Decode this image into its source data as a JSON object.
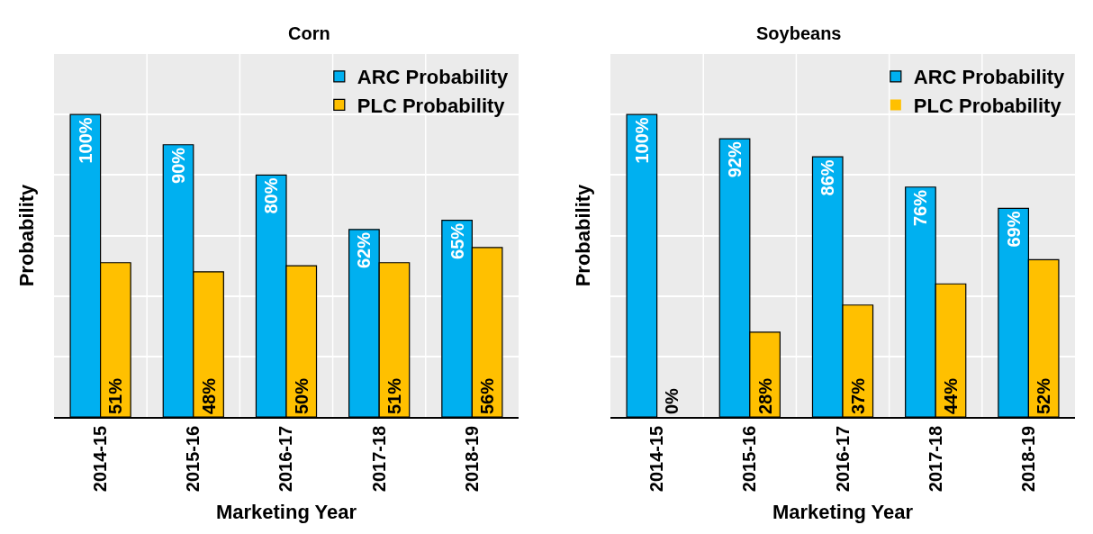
{
  "chart_data": [
    {
      "type": "bar",
      "title": "Corn",
      "xlabel": "Marketing Year",
      "ylabel": "Probability",
      "categories": [
        "2014-15",
        "2015-16",
        "2016-17",
        "2017-18",
        "2018-19"
      ],
      "series": [
        {
          "name": "ARC Probability",
          "color": "#00b0f0",
          "values": [
            100,
            90,
            80,
            62,
            65
          ],
          "value_labels": [
            "100%",
            "90%",
            "80%",
            "62%",
            "65%"
          ]
        },
        {
          "name": "PLC Probability",
          "color": "#ffc000",
          "values": [
            51,
            48,
            50,
            51,
            56
          ],
          "value_labels": [
            "51%",
            "48%",
            "50%",
            "51%",
            "56%"
          ]
        }
      ],
      "ylim": [
        0,
        120
      ],
      "yticks": [
        {
          "value": 0,
          "label": null
        },
        {
          "value": 20,
          "label": null
        },
        {
          "value": 40,
          "label": null
        },
        {
          "value": 60,
          "label": null
        },
        {
          "value": 80,
          "label": null
        },
        {
          "value": 100,
          "label": null
        },
        {
          "value": 120,
          "label": null
        }
      ],
      "tick_labels": "x",
      "grid": true,
      "legend": "top right"
    },
    {
      "type": "bar",
      "title": "Soybeans",
      "xlabel": "Marketing Year",
      "ylabel": "Probability",
      "categories": [
        "2014-15",
        "2015-16",
        "2016-17",
        "2017-18",
        "2018-19"
      ],
      "series": [
        {
          "name": "ARC Probability",
          "color": "#00b0f0",
          "values": [
            100,
            92,
            86,
            76,
            69
          ],
          "value_labels": [
            "100%",
            "92%",
            "86%",
            "76%",
            "69%"
          ]
        },
        {
          "name": "PLC Probability",
          "color": "#ffc000",
          "values": [
            0,
            28,
            37,
            44,
            52
          ],
          "value_labels": [
            "0%",
            "28%",
            "37%",
            "44%",
            "52%"
          ]
        }
      ],
      "ylim": [
        0,
        120
      ],
      "yticks": [
        {
          "value": 0,
          "label": null
        },
        {
          "value": 20,
          "label": null
        },
        {
          "value": 40,
          "label": null
        },
        {
          "value": 60,
          "label": null
        },
        {
          "value": 80,
          "label": null
        },
        {
          "value": 100,
          "label": null
        },
        {
          "value": 120,
          "label": null
        }
      ],
      "tick_labels": "x",
      "grid": true,
      "legend": "top right"
    }
  ]
}
